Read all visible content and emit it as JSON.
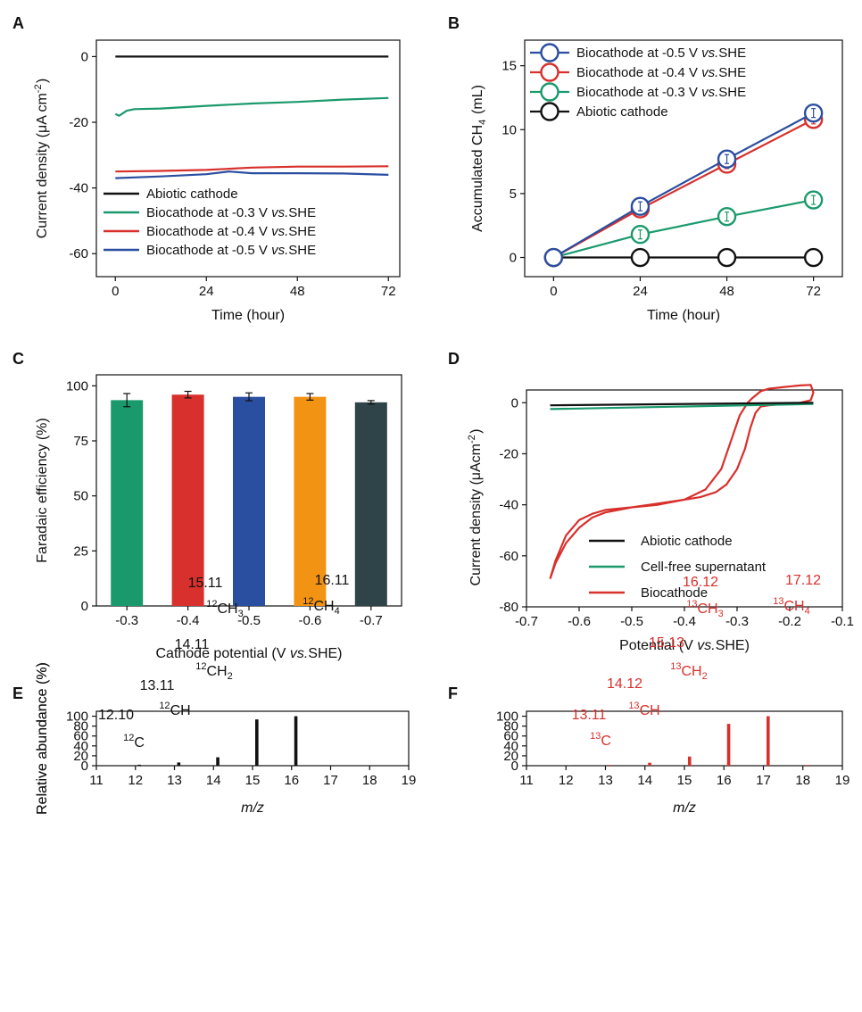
{
  "panel_letters": [
    "A",
    "B",
    "C",
    "D",
    "E",
    "F"
  ],
  "colors": {
    "black": "#111111",
    "green": "#1a9a6c",
    "red": "#d8302c",
    "blue": "#2a4ea0",
    "orange": "#f39314",
    "darkslate": "#2f4448",
    "peak_red": "#d8302c"
  },
  "chart_data": [
    {
      "id": "A",
      "type": "line",
      "xlabel": "Time (hour)",
      "ylabel": "Current density (μA cm⁻²)",
      "xlim": [
        -5,
        75
      ],
      "ylim": [
        -67,
        5
      ],
      "xticks": [
        0,
        24,
        48,
        72
      ],
      "yticks": [
        0,
        -20,
        -40,
        -60
      ],
      "legend_position": "bottom-left",
      "series": [
        {
          "name": "Abiotic cathode",
          "color": "#111111",
          "x": [
            0,
            72
          ],
          "y": [
            0,
            0
          ]
        },
        {
          "name": "Biocathode at -0.3 V vs.SHE",
          "color": "#1a9a6c",
          "x": [
            0,
            1,
            3,
            5,
            12,
            24,
            36,
            48,
            60,
            72
          ],
          "y": [
            -17.5,
            -18,
            -16.5,
            -16,
            -15.8,
            -15,
            -14.3,
            -13.8,
            -13.1,
            -12.6
          ]
        },
        {
          "name": "Biocathode at -0.4 V vs.SHE",
          "color": "#d8302c",
          "x": [
            0,
            12,
            24,
            36,
            48,
            60,
            72
          ],
          "y": [
            -35,
            -34.8,
            -34.5,
            -33.8,
            -33.5,
            -33.5,
            -33.4
          ]
        },
        {
          "name": "Biocathode at -0.5 V vs.SHE",
          "color": "#2a4ea0",
          "x": [
            0,
            12,
            24,
            30,
            36,
            48,
            60,
            72
          ],
          "y": [
            -37,
            -36.5,
            -35.8,
            -35,
            -35.5,
            -35.5,
            -35.6,
            -36
          ]
        }
      ]
    },
    {
      "id": "B",
      "type": "line",
      "xlabel": "Time (hour)",
      "ylabel": "Accumulated CH₄ (mL)",
      "xlim": [
        -8,
        80
      ],
      "ylim": [
        -1.5,
        17
      ],
      "xticks": [
        0,
        24,
        48,
        72
      ],
      "yticks": [
        0,
        5,
        10,
        15
      ],
      "legend_position": "top-left",
      "series": [
        {
          "name": "Biocathode at -0.5 V vs.SHE",
          "color": "#2a4ea0",
          "x": [
            0,
            24,
            48,
            72
          ],
          "y": [
            0,
            4.0,
            7.7,
            11.3
          ]
        },
        {
          "name": "Biocathode at -0.4 V vs.SHE",
          "color": "#d8302c",
          "x": [
            0,
            24,
            48,
            72
          ],
          "y": [
            0,
            3.8,
            7.3,
            10.8
          ]
        },
        {
          "name": "Biocathode at -0.3 V vs.SHE",
          "color": "#1a9a6c",
          "x": [
            0,
            24,
            48,
            72
          ],
          "y": [
            0,
            1.8,
            3.2,
            4.5
          ]
        },
        {
          "name": "Abiotic cathode",
          "color": "#111111",
          "x": [
            0,
            24,
            48,
            72
          ],
          "y": [
            0,
            0,
            0,
            0
          ]
        }
      ]
    },
    {
      "id": "C",
      "type": "bar",
      "xlabel": "Cathode potential (V vs.SHE)",
      "ylabel": "Faradaic efficiency (%)",
      "ylim": [
        0,
        105
      ],
      "yticks": [
        0,
        25,
        50,
        75,
        100
      ],
      "categories": [
        "-0.3",
        "-0.4",
        "-0.5",
        "-0.6",
        "-0.7"
      ],
      "values": [
        93.5,
        96,
        95,
        95,
        92.5
      ],
      "errors": [
        3.0,
        1.5,
        1.8,
        1.5,
        0.8
      ],
      "bar_colors": [
        "#1a9a6c",
        "#d8302c",
        "#2a4ea0",
        "#f39314",
        "#2f4448"
      ]
    },
    {
      "id": "D",
      "type": "line",
      "xlabel": "Potential (V vs.SHE)",
      "ylabel": "Current density (μAcm⁻²)",
      "xlim": [
        -0.7,
        -0.1
      ],
      "ylim": [
        -80,
        5
      ],
      "xticks": [
        -0.7,
        -0.6,
        -0.5,
        -0.4,
        -0.3,
        -0.2,
        -0.1
      ],
      "yticks": [
        0,
        -20,
        -40,
        -60,
        -80
      ],
      "legend_position": "bottom-right",
      "series": [
        {
          "name": "Abiotic cathode",
          "color": "#111111",
          "x": [
            -0.655,
            -0.155
          ],
          "y": [
            -1.0,
            0.0
          ]
        },
        {
          "name": "Cell-free supernatant",
          "color": "#1a9a6c",
          "x": [
            -0.655,
            -0.155
          ],
          "y": [
            -2.5,
            -0.5
          ]
        },
        {
          "name": "Biocathode",
          "color": "#d8302c",
          "x": [
            -0.655,
            -0.645,
            -0.625,
            -0.6,
            -0.575,
            -0.55,
            -0.5,
            -0.45,
            -0.4,
            -0.36,
            -0.33,
            -0.31,
            -0.295,
            -0.28,
            -0.27,
            -0.255,
            -0.24,
            -0.21,
            -0.18,
            -0.16,
            -0.155,
            -0.16,
            -0.18,
            -0.21,
            -0.24,
            -0.255,
            -0.265,
            -0.275,
            -0.285,
            -0.3,
            -0.32,
            -0.34,
            -0.37,
            -0.4,
            -0.45,
            -0.5,
            -0.55,
            -0.575,
            -0.6,
            -0.625,
            -0.645,
            -0.655
          ],
          "y": [
            -69,
            -62,
            -52,
            -46,
            -43.5,
            -42,
            -41,
            -40,
            -38,
            -34,
            -26,
            -14,
            -5,
            0,
            2,
            4.5,
            5.5,
            6.2,
            6.8,
            7,
            4,
            1,
            0,
            -0.5,
            -1,
            -1.5,
            -4,
            -10,
            -18,
            -26,
            -32,
            -35,
            -37,
            -38,
            -39.5,
            -41,
            -43,
            -45,
            -49,
            -55,
            -63,
            -69
          ]
        }
      ]
    },
    {
      "id": "E",
      "type": "bar",
      "xlabel": "m/z",
      "ylabel": "Relative abundance (%)",
      "xlim": [
        11,
        19
      ],
      "ylim": [
        0,
        110
      ],
      "xticks": [
        11,
        12,
        13,
        14,
        15,
        16,
        17,
        18,
        19
      ],
      "yticks": [
        0,
        20,
        40,
        60,
        80,
        100
      ],
      "x": [
        12.1,
        13.11,
        14.11,
        15.11,
        16.11,
        18.1
      ],
      "values": [
        2,
        6.5,
        17,
        93.5,
        100,
        0.5
      ],
      "annotations": [
        {
          "mass": "12.10",
          "ion": "C",
          "iso": "12",
          "sub": ""
        },
        {
          "mass": "13.11",
          "ion": "CH",
          "iso": "12",
          "sub": ""
        },
        {
          "mass": "14.11",
          "ion": "CH",
          "iso": "12",
          "sub": "2"
        },
        {
          "mass": "15.11",
          "ion": "CH",
          "iso": "12",
          "sub": "3"
        },
        {
          "mass": "16.11",
          "ion": "CH",
          "iso": "12",
          "sub": "4"
        }
      ]
    },
    {
      "id": "F",
      "type": "bar",
      "xlabel": "m/z",
      "ylabel": "Relative abundance (%)",
      "xlim": [
        11,
        19
      ],
      "ylim": [
        0,
        110
      ],
      "xticks": [
        11,
        12,
        13,
        14,
        15,
        16,
        17,
        18,
        19
      ],
      "yticks": [
        0,
        20,
        40,
        60,
        80,
        100
      ],
      "x": [
        12.1,
        13.11,
        14.12,
        15.13,
        16.12,
        17.12,
        18.1
      ],
      "values": [
        0.3,
        1.5,
        6,
        18.5,
        84.5,
        100,
        1.5
      ],
      "annotations": [
        {
          "mass": "13.11",
          "ion": "C",
          "iso": "13",
          "sub": ""
        },
        {
          "mass": "14.12",
          "ion": "CH",
          "iso": "13",
          "sub": ""
        },
        {
          "mass": "15.13",
          "ion": "CH",
          "iso": "13",
          "sub": "2"
        },
        {
          "mass": "16.12",
          "ion": "CH",
          "iso": "13",
          "sub": "3"
        },
        {
          "mass": "17.12",
          "ion": "CH",
          "iso": "13",
          "sub": "4"
        }
      ]
    }
  ]
}
